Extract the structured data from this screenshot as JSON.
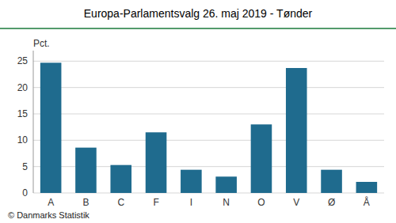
{
  "chart_data": {
    "type": "bar",
    "title": "Europa-Parlamentsvalg 26. maj 2019 - Tønder",
    "ylabel": "Pct.",
    "annotations": [
      "© Danmarks Statistik"
    ],
    "categories": [
      "A",
      "B",
      "C",
      "F",
      "I",
      "N",
      "O",
      "V",
      "Ø",
      "Å"
    ],
    "values": [
      24.7,
      8.6,
      5.3,
      11.5,
      4.4,
      3.1,
      13.0,
      23.7,
      4.4,
      2.1
    ],
    "color": "#1f6b8e",
    "ylim": [
      0,
      27
    ],
    "yticks": [
      0,
      5,
      10,
      15,
      20,
      25
    ],
    "grid": true
  }
}
